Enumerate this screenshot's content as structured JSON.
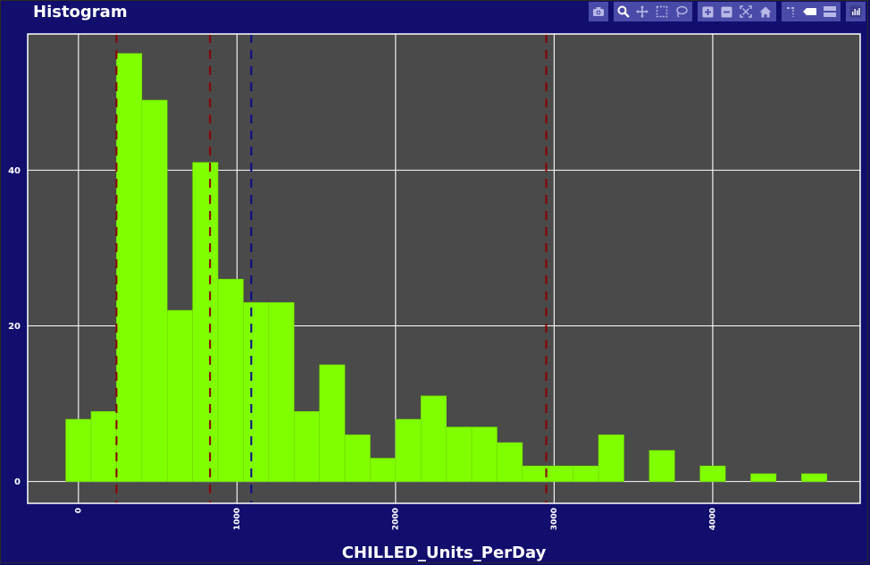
{
  "title": "Histogram",
  "modebar": {
    "icons": [
      "camera-icon",
      "zoom-icon",
      "pan-icon",
      "box-select-icon",
      "lasso-icon",
      "zoom-in-icon",
      "zoom-out-icon",
      "autoscale-icon",
      "reset-axes-icon",
      "spike-lines-icon",
      "hover-closest-icon",
      "hover-compare-icon",
      "plotly-logo-icon"
    ]
  },
  "colors": {
    "background": "#110e6e",
    "plot_bg": "#4a4a4a",
    "bar": "#80ff00",
    "grid": "#ffffff",
    "ref_line_red": "#8b0000",
    "ref_line_blue": "#0a0a8a"
  },
  "chart_data": {
    "type": "bar",
    "title": "Histogram",
    "xlabel": "CHILLED_Units_PerDay",
    "ylabel": "",
    "xlim": [
      -320,
      4930
    ],
    "ylim": [
      -2.8,
      57.5
    ],
    "x_ticks": [
      0,
      1000,
      2000,
      3000,
      4000
    ],
    "y_ticks": [
      0,
      20,
      40
    ],
    "grid": true,
    "bin_width": 160,
    "bins": [
      {
        "x0": -80,
        "x1": 80,
        "count": 8
      },
      {
        "x0": 80,
        "x1": 240,
        "count": 9
      },
      {
        "x0": 240,
        "x1": 400,
        "count": 55
      },
      {
        "x0": 400,
        "x1": 560,
        "count": 49
      },
      {
        "x0": 560,
        "x1": 720,
        "count": 22
      },
      {
        "x0": 720,
        "x1": 880,
        "count": 41
      },
      {
        "x0": 880,
        "x1": 1040,
        "count": 26
      },
      {
        "x0": 1040,
        "x1": 1200,
        "count": 23
      },
      {
        "x0": 1200,
        "x1": 1360,
        "count": 23
      },
      {
        "x0": 1360,
        "x1": 1520,
        "count": 9
      },
      {
        "x0": 1520,
        "x1": 1680,
        "count": 15
      },
      {
        "x0": 1680,
        "x1": 1840,
        "count": 6
      },
      {
        "x0": 1840,
        "x1": 2000,
        "count": 3
      },
      {
        "x0": 2000,
        "x1": 2160,
        "count": 8
      },
      {
        "x0": 2160,
        "x1": 2320,
        "count": 11
      },
      {
        "x0": 2320,
        "x1": 2480,
        "count": 7
      },
      {
        "x0": 2480,
        "x1": 2640,
        "count": 7
      },
      {
        "x0": 2640,
        "x1": 2800,
        "count": 5
      },
      {
        "x0": 2800,
        "x1": 2960,
        "count": 2
      },
      {
        "x0": 2960,
        "x1": 3120,
        "count": 2
      },
      {
        "x0": 3120,
        "x1": 3280,
        "count": 2
      },
      {
        "x0": 3280,
        "x1": 3440,
        "count": 6
      },
      {
        "x0": 3600,
        "x1": 3760,
        "count": 4
      },
      {
        "x0": 3920,
        "x1": 4080,
        "count": 2
      },
      {
        "x0": 4240,
        "x1": 4400,
        "count": 1
      },
      {
        "x0": 4560,
        "x1": 4720,
        "count": 1
      }
    ],
    "reference_lines": [
      {
        "x": 240,
        "color": "#8b0000"
      },
      {
        "x": 830,
        "color": "#8b0000"
      },
      {
        "x": 1090,
        "color": "#0a0a8a"
      },
      {
        "x": 2950,
        "color": "#8b0000"
      }
    ]
  }
}
